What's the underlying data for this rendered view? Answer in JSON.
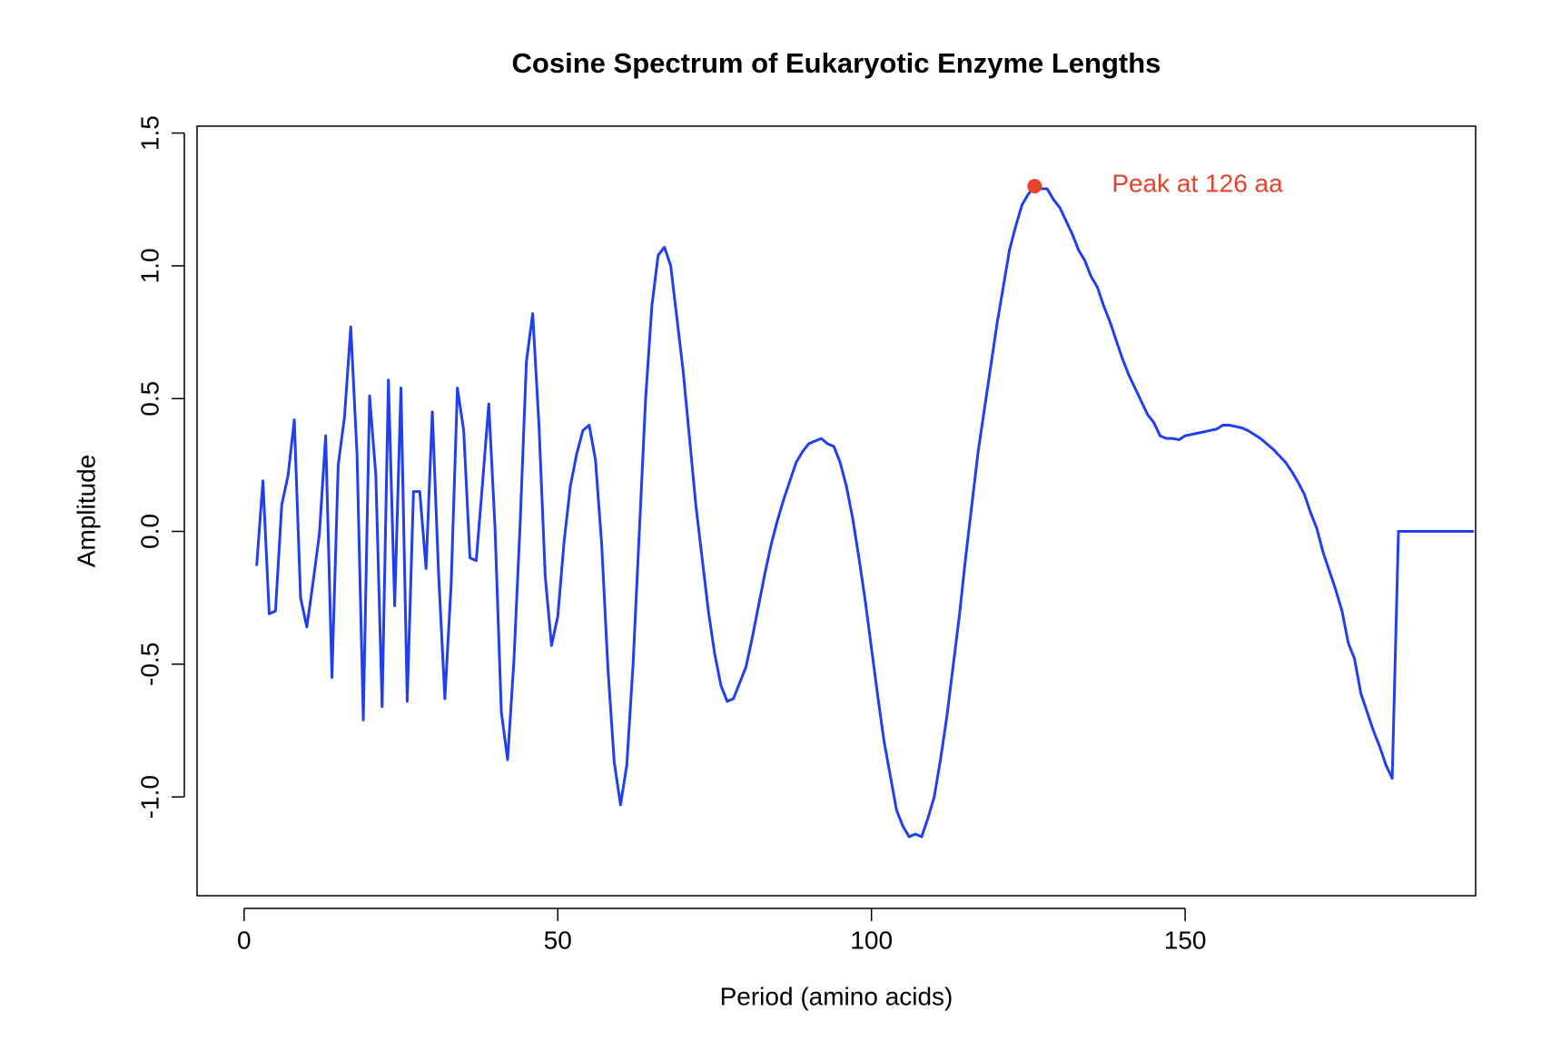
{
  "chart_data": {
    "type": "line",
    "title": "Cosine Spectrum of Eukaryotic Enzyme Lengths",
    "xlabel": "Period (amino acids)",
    "ylabel": "Amplitude",
    "x": [
      2,
      3,
      4,
      5,
      6,
      7,
      8,
      9,
      10,
      11,
      12,
      13,
      14,
      15,
      16,
      17,
      18,
      19,
      20,
      21,
      22,
      23,
      24,
      25,
      26,
      27,
      28,
      29,
      30,
      31,
      32,
      33,
      34,
      35,
      36,
      37,
      38,
      39,
      40,
      41,
      42,
      43,
      44,
      45,
      46,
      47,
      48,
      49,
      50,
      51,
      52,
      53,
      54,
      55,
      56,
      57,
      58,
      59,
      60,
      61,
      62,
      63,
      64,
      65,
      66,
      67,
      68,
      69,
      70,
      71,
      72,
      73,
      74,
      75,
      76,
      77,
      78,
      79,
      80,
      81,
      82,
      83,
      84,
      85,
      86,
      87,
      88,
      89,
      90,
      91,
      92,
      93,
      94,
      95,
      96,
      97,
      98,
      99,
      100,
      101,
      102,
      103,
      104,
      105,
      106,
      107,
      108,
      109,
      110,
      111,
      112,
      113,
      114,
      115,
      116,
      117,
      118,
      119,
      120,
      121,
      122,
      123,
      124,
      125,
      126,
      127,
      128,
      129,
      130,
      131,
      132,
      133,
      134,
      135,
      136,
      137,
      138,
      139,
      140,
      141,
      142,
      143,
      144,
      145,
      146,
      147,
      148,
      149,
      150,
      151,
      152,
      153,
      154,
      155,
      156,
      157,
      158,
      159,
      160,
      161,
      162,
      163,
      164,
      165,
      166,
      167,
      168,
      169,
      170,
      171,
      172,
      173,
      174,
      175,
      176,
      177,
      178,
      179,
      180,
      181,
      182,
      183,
      184,
      185,
      186,
      187,
      188,
      189,
      190,
      191,
      192,
      193,
      194,
      195,
      196
    ],
    "series": [
      {
        "color": "#1f3ff0",
        "values": [
          -0.13,
          0.19,
          -0.31,
          -0.3,
          0.1,
          0.21,
          0.42,
          -0.25,
          -0.36,
          -0.19,
          -0.01,
          0.36,
          -0.55,
          0.25,
          0.43,
          0.77,
          0.29,
          -0.71,
          0.51,
          0.21,
          -0.66,
          0.57,
          -0.28,
          0.54,
          -0.64,
          0.15,
          0.15,
          -0.14,
          0.45,
          -0.16,
          -0.63,
          -0.2,
          0.54,
          0.38,
          -0.1,
          -0.11,
          0.18,
          0.48,
          0.01,
          -0.68,
          -0.86,
          -0.49,
          0.03,
          0.64,
          0.82,
          0.4,
          -0.17,
          -0.43,
          -0.32,
          -0.04,
          0.17,
          0.29,
          0.38,
          0.4,
          0.27,
          -0.05,
          -0.52,
          -0.87,
          -1.03,
          -0.88,
          -0.5,
          0.0,
          0.5,
          0.85,
          1.04,
          1.07,
          1.0,
          0.8,
          0.6,
          0.35,
          0.1,
          -0.1,
          -0.3,
          -0.46,
          -0.58,
          -0.64,
          -0.63,
          -0.57,
          -0.51,
          -0.4,
          -0.28,
          -0.16,
          -0.05,
          0.04,
          0.12,
          0.19,
          0.26,
          0.3,
          0.33,
          0.34,
          0.35,
          0.33,
          0.32,
          0.26,
          0.17,
          0.05,
          -0.1,
          -0.26,
          -0.44,
          -0.62,
          -0.79,
          -0.92,
          -1.05,
          -1.11,
          -1.15,
          -1.14,
          -1.15,
          -1.08,
          -1.0,
          -0.86,
          -0.7,
          -0.51,
          -0.32,
          -0.1,
          0.1,
          0.3,
          0.46,
          0.62,
          0.78,
          0.92,
          1.06,
          1.15,
          1.23,
          1.27,
          1.3,
          1.29,
          1.29,
          1.25,
          1.22,
          1.17,
          1.12,
          1.06,
          1.02,
          0.96,
          0.92,
          0.85,
          0.79,
          0.72,
          0.65,
          0.59,
          0.54,
          0.49,
          0.44,
          0.41,
          0.36,
          0.35,
          0.35,
          0.345,
          0.36,
          0.365,
          0.37,
          0.375,
          0.38,
          0.385,
          0.4,
          0.4,
          0.395,
          0.39,
          0.38,
          0.365,
          0.35,
          0.33,
          0.31,
          0.285,
          0.26,
          0.225,
          0.185,
          0.14,
          0.07,
          0.01,
          -0.08,
          -0.15,
          -0.22,
          -0.3,
          -0.42,
          -0.48,
          -0.61,
          -0.68,
          -0.75,
          -0.81,
          -0.88,
          -0.93,
          0,
          0,
          0,
          0,
          0,
          0,
          0,
          0,
          0,
          0,
          0,
          0,
          0
        ]
      }
    ],
    "peak": {
      "x": 126,
      "y": 1.3,
      "color": "#e8412c",
      "label": "Peak at 126 aa"
    },
    "xlim": [
      -7.5,
      196.3
    ],
    "ylim": [
      -1.372,
      1.526
    ],
    "xticks": [
      0,
      50,
      100,
      150
    ],
    "yticks": [
      {
        "value": -1,
        "label": "-1.0"
      },
      {
        "value": -0.5,
        "label": "-0.5"
      },
      {
        "value": 0,
        "label": "0.0"
      },
      {
        "value": 0.5,
        "label": "0.5"
      },
      {
        "value": 1,
        "label": "1.0"
      },
      {
        "value": 1.5,
        "label": "1.5"
      }
    ]
  }
}
